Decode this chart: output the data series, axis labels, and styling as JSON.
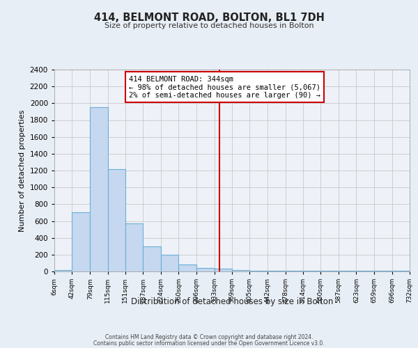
{
  "title": "414, BELMONT ROAD, BOLTON, BL1 7DH",
  "subtitle": "Size of property relative to detached houses in Bolton",
  "xlabel": "Distribution of detached houses by size in Bolton",
  "ylabel": "Number of detached properties",
  "bar_values": [
    20,
    700,
    1950,
    1220,
    575,
    300,
    200,
    80,
    45,
    30,
    20,
    5,
    5,
    5,
    5,
    5,
    5,
    5,
    5,
    5
  ],
  "bin_edges": [
    6,
    42,
    79,
    115,
    151,
    187,
    224,
    260,
    296,
    333,
    369,
    405,
    442,
    478,
    514,
    550,
    587,
    623,
    659,
    696,
    732
  ],
  "tick_labels": [
    "6sqm",
    "42sqm",
    "79sqm",
    "115sqm",
    "151sqm",
    "187sqm",
    "224sqm",
    "260sqm",
    "296sqm",
    "333sqm",
    "369sqm",
    "405sqm",
    "442sqm",
    "478sqm",
    "514sqm",
    "550sqm",
    "587sqm",
    "623sqm",
    "659sqm",
    "696sqm",
    "732sqm"
  ],
  "bar_color": "#c5d8ef",
  "bar_edge_color": "#6aaed6",
  "vline_x": 344,
  "vline_color": "#cc0000",
  "annotation_text": "414 BELMONT ROAD: 344sqm\n← 98% of detached houses are smaller (5,067)\n2% of semi-detached houses are larger (90) →",
  "annotation_box_color": "#ffffff",
  "annotation_box_edge": "#cc0000",
  "ylim": [
    0,
    2400
  ],
  "yticks": [
    0,
    200,
    400,
    600,
    800,
    1000,
    1200,
    1400,
    1600,
    1800,
    2000,
    2200,
    2400
  ],
  "grid_color": "#c8c8c8",
  "bg_color": "#e8eef5",
  "plot_bg_color": "#eef2f8",
  "footer1": "Contains HM Land Registry data © Crown copyright and database right 2024.",
  "footer2": "Contains public sector information licensed under the Open Government Licence v3.0."
}
